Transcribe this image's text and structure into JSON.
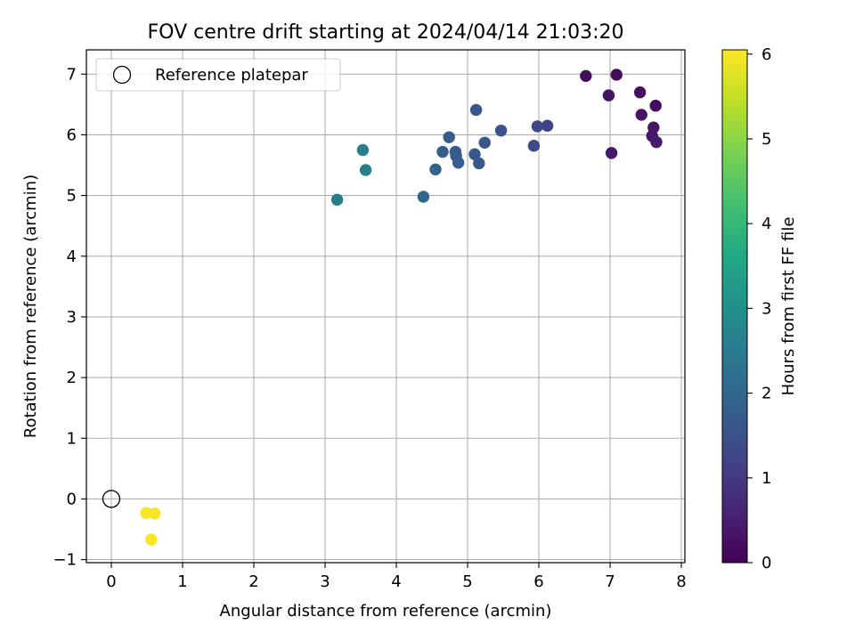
{
  "chart_data": {
    "type": "scatter",
    "title": "FOV centre drift starting at 2024/04/14 21:03:20",
    "xlabel": "Angular distance from reference (arcmin)",
    "ylabel": "Rotation from reference (arcmin)",
    "xlim": [
      -0.35,
      8.05
    ],
    "ylim": [
      -1.05,
      7.4
    ],
    "xticks": [
      0,
      1,
      2,
      3,
      4,
      5,
      6,
      7,
      8
    ],
    "yticks": [
      -1,
      0,
      1,
      2,
      3,
      4,
      5,
      6,
      7
    ],
    "grid": true,
    "legend": {
      "placement": "top-left",
      "entries": [
        "Reference platepar"
      ]
    },
    "reference_point": {
      "x": 0,
      "y": 0,
      "label": "Reference platepar",
      "marker": "open-circle"
    },
    "colorbar": {
      "label": "Hours from first FF file",
      "colormap": "viridis",
      "range": [
        0,
        6.05
      ],
      "ticks": [
        0,
        1,
        2,
        3,
        4,
        5,
        6
      ]
    },
    "points": [
      {
        "x": 6.66,
        "y": 6.97,
        "hours": 0.2
      },
      {
        "x": 7.09,
        "y": 6.99,
        "hours": 0.15
      },
      {
        "x": 6.98,
        "y": 6.65,
        "hours": 0.3
      },
      {
        "x": 7.42,
        "y": 6.7,
        "hours": 0.25
      },
      {
        "x": 7.64,
        "y": 6.48,
        "hours": 0.2
      },
      {
        "x": 7.44,
        "y": 6.33,
        "hours": 0.3
      },
      {
        "x": 7.61,
        "y": 6.12,
        "hours": 0.35
      },
      {
        "x": 7.59,
        "y": 5.98,
        "hours": 0.4
      },
      {
        "x": 7.65,
        "y": 5.88,
        "hours": 0.45
      },
      {
        "x": 7.02,
        "y": 5.7,
        "hours": 0.4
      },
      {
        "x": 6.12,
        "y": 6.15,
        "hours": 1.2
      },
      {
        "x": 5.98,
        "y": 6.14,
        "hours": 1.25
      },
      {
        "x": 5.93,
        "y": 5.82,
        "hours": 1.3
      },
      {
        "x": 5.47,
        "y": 6.07,
        "hours": 1.5
      },
      {
        "x": 5.12,
        "y": 6.41,
        "hours": 1.6
      },
      {
        "x": 5.24,
        "y": 5.87,
        "hours": 1.6
      },
      {
        "x": 5.1,
        "y": 5.68,
        "hours": 1.65
      },
      {
        "x": 5.16,
        "y": 5.53,
        "hours": 1.7
      },
      {
        "x": 4.74,
        "y": 5.96,
        "hours": 1.75
      },
      {
        "x": 4.65,
        "y": 5.72,
        "hours": 1.8
      },
      {
        "x": 4.83,
        "y": 5.72,
        "hours": 1.7
      },
      {
        "x": 4.84,
        "y": 5.65,
        "hours": 1.75
      },
      {
        "x": 4.87,
        "y": 5.54,
        "hours": 1.8
      },
      {
        "x": 4.55,
        "y": 5.43,
        "hours": 1.9
      },
      {
        "x": 4.38,
        "y": 4.98,
        "hours": 2.0
      },
      {
        "x": 3.53,
        "y": 5.75,
        "hours": 2.5
      },
      {
        "x": 3.57,
        "y": 5.42,
        "hours": 2.55
      },
      {
        "x": 3.17,
        "y": 4.93,
        "hours": 2.55
      },
      {
        "x": 0.49,
        "y": -0.23,
        "hours": 6.0
      },
      {
        "x": 0.61,
        "y": -0.24,
        "hours": 6.0
      },
      {
        "x": 0.56,
        "y": -0.67,
        "hours": 6.0
      }
    ]
  }
}
